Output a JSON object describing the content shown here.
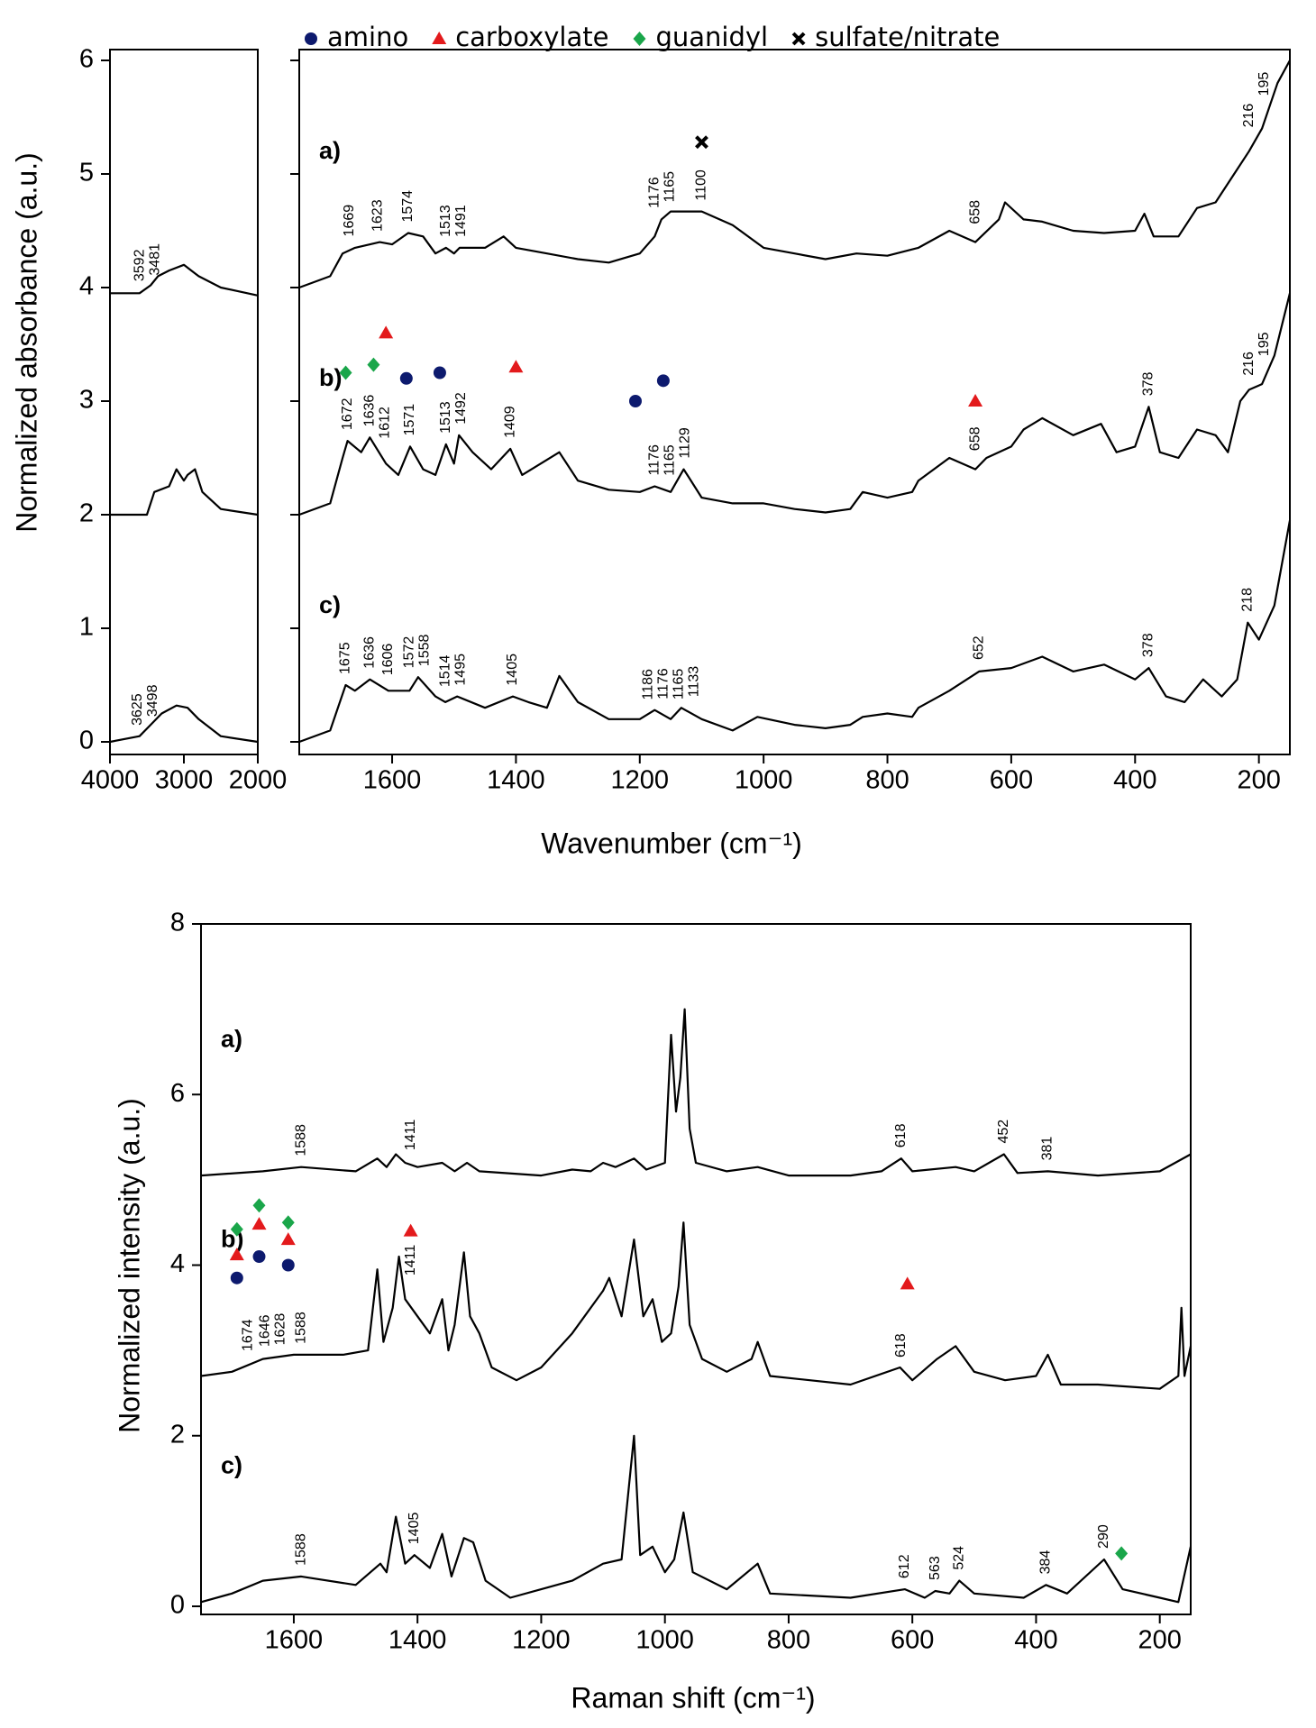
{
  "chart_data": [
    {
      "type": "line",
      "y_label": "Normalized absorbance (a.u.)",
      "xlim": [
        4000,
        2000
      ],
      "xticks": [
        4000,
        3000,
        2000
      ],
      "ylim": [
        0,
        6
      ],
      "yticks": [
        0,
        1,
        2,
        3,
        4,
        5,
        6
      ],
      "series": [
        {
          "color": "#000000",
          "x": [
            4000,
            3600,
            3450,
            3350,
            3200,
            3000,
            2900,
            2800,
            2500,
            2000
          ],
          "values": [
            3.95,
            3.95,
            4.02,
            4.1,
            4.15,
            4.2,
            4.15,
            4.1,
            4.0,
            3.93
          ],
          "peaks": [
            3592,
            3481
          ]
        },
        {
          "color": "#000000",
          "x": [
            4000,
            3500,
            3400,
            3200,
            3100,
            3000,
            2950,
            2850,
            2750,
            2500,
            2000
          ],
          "values": [
            2.0,
            2.0,
            2.2,
            2.25,
            2.4,
            2.3,
            2.35,
            2.4,
            2.2,
            2.05,
            2.0
          ]
        },
        {
          "color": "#000000",
          "x": [
            4000,
            3600,
            3450,
            3300,
            3100,
            2950,
            2800,
            2500,
            2000
          ],
          "values": [
            0.0,
            0.05,
            0.15,
            0.25,
            0.32,
            0.3,
            0.2,
            0.05,
            0.0
          ],
          "peaks": [
            3625,
            3498
          ]
        }
      ]
    },
    {
      "type": "line",
      "x_label": "Wavenumber (cm⁻¹)",
      "xlim": [
        1750,
        150
      ],
      "xticks": [
        1600,
        1400,
        1200,
        1000,
        800,
        600,
        400,
        200
      ],
      "ylim": [
        0,
        6
      ],
      "yticks": [
        0,
        1,
        2,
        3,
        4,
        5,
        6
      ],
      "series": [
        {
          "name": "a)",
          "color": "#000000",
          "x": [
            1750,
            1700,
            1680,
            1660,
            1620,
            1600,
            1574,
            1550,
            1530,
            1513,
            1500,
            1491,
            1450,
            1420,
            1400,
            1350,
            1300,
            1250,
            1200,
            1176,
            1165,
            1150,
            1100,
            1050,
            1000,
            950,
            900,
            850,
            800,
            750,
            700,
            658,
            620,
            610,
            580,
            550,
            500,
            450,
            400,
            385,
            370,
            330,
            300,
            270,
            240,
            216,
            195,
            170,
            150
          ],
          "values": [
            4.0,
            4.1,
            4.3,
            4.35,
            4.4,
            4.38,
            4.48,
            4.45,
            4.3,
            4.35,
            4.3,
            4.35,
            4.35,
            4.45,
            4.35,
            4.3,
            4.25,
            4.22,
            4.3,
            4.45,
            4.6,
            4.67,
            4.67,
            4.55,
            4.35,
            4.3,
            4.25,
            4.3,
            4.28,
            4.35,
            4.5,
            4.4,
            4.6,
            4.75,
            4.6,
            4.58,
            4.5,
            4.48,
            4.5,
            4.65,
            4.45,
            4.45,
            4.7,
            4.75,
            5.0,
            5.2,
            5.4,
            5.8,
            6.0
          ],
          "peaks": [
            1669,
            1623,
            1574,
            1513,
            1491,
            1176,
            1165,
            1100,
            658,
            216,
            195
          ]
        },
        {
          "name": "b)",
          "color": "#000000",
          "x": [
            1750,
            1700,
            1680,
            1672,
            1650,
            1636,
            1610,
            1590,
            1571,
            1550,
            1530,
            1513,
            1500,
            1492,
            1470,
            1440,
            1409,
            1390,
            1360,
            1330,
            1300,
            1250,
            1200,
            1176,
            1150,
            1129,
            1100,
            1050,
            1000,
            950,
            900,
            860,
            840,
            800,
            760,
            750,
            700,
            658,
            640,
            600,
            580,
            550,
            500,
            455,
            430,
            400,
            378,
            360,
            330,
            300,
            270,
            250,
            230,
            216,
            195,
            175,
            150
          ],
          "values": [
            2.0,
            2.1,
            2.5,
            2.65,
            2.55,
            2.68,
            2.45,
            2.35,
            2.6,
            2.4,
            2.35,
            2.62,
            2.45,
            2.7,
            2.55,
            2.4,
            2.58,
            2.35,
            2.45,
            2.55,
            2.3,
            2.22,
            2.2,
            2.25,
            2.2,
            2.4,
            2.15,
            2.1,
            2.1,
            2.05,
            2.02,
            2.05,
            2.2,
            2.15,
            2.2,
            2.3,
            2.5,
            2.4,
            2.5,
            2.6,
            2.75,
            2.85,
            2.7,
            2.8,
            2.55,
            2.6,
            2.95,
            2.55,
            2.5,
            2.75,
            2.7,
            2.55,
            3.0,
            3.1,
            3.15,
            3.4,
            3.95
          ],
          "peaks": [
            1672,
            1636,
            1612,
            1571,
            1513,
            1492,
            1409,
            1176,
            1165,
            1129,
            658,
            378,
            216,
            195
          ]
        },
        {
          "name": "c)",
          "color": "#000000",
          "x": [
            1750,
            1700,
            1675,
            1660,
            1636,
            1606,
            1572,
            1558,
            1530,
            1514,
            1495,
            1450,
            1405,
            1380,
            1350,
            1330,
            1300,
            1250,
            1200,
            1176,
            1150,
            1133,
            1100,
            1050,
            1010,
            950,
            900,
            860,
            840,
            800,
            760,
            750,
            700,
            652,
            600,
            550,
            500,
            450,
            400,
            378,
            350,
            320,
            290,
            260,
            235,
            218,
            200,
            175,
            150
          ],
          "values": [
            0.0,
            0.1,
            0.5,
            0.45,
            0.55,
            0.45,
            0.45,
            0.57,
            0.4,
            0.35,
            0.4,
            0.3,
            0.4,
            0.35,
            0.3,
            0.58,
            0.35,
            0.2,
            0.2,
            0.28,
            0.2,
            0.3,
            0.2,
            0.1,
            0.22,
            0.15,
            0.12,
            0.15,
            0.22,
            0.25,
            0.22,
            0.3,
            0.45,
            0.62,
            0.65,
            0.75,
            0.62,
            0.68,
            0.55,
            0.65,
            0.4,
            0.35,
            0.55,
            0.4,
            0.55,
            1.05,
            0.9,
            1.2,
            1.95
          ],
          "peaks": [
            1675,
            1636,
            1606,
            1572,
            1558,
            1514,
            1495,
            1405,
            1186,
            1176,
            1165,
            1133,
            652,
            378,
            218
          ]
        }
      ],
      "markers": [
        {
          "name": "amino",
          "color": "#0d1a6e",
          "symbol": "circle",
          "x": [
            1577,
            1523,
            1207,
            1162
          ],
          "y": [
            3.2,
            3.25,
            3.0,
            3.18
          ]
        },
        {
          "name": "carboxylate",
          "color": "#e31a1c",
          "symbol": "triangle",
          "x": [
            1610,
            1400,
            658
          ],
          "y": [
            3.6,
            3.3,
            3.0
          ]
        },
        {
          "name": "guanidyl",
          "color": "#1aa64a",
          "symbol": "diamond",
          "x": [
            1675,
            1630
          ],
          "y": [
            3.25,
            3.32
          ]
        },
        {
          "name": "sulfate/nitrate",
          "color": "#000000",
          "symbol": "cross",
          "x": [
            1100
          ],
          "y": [
            5.28
          ]
        }
      ]
    },
    {
      "type": "line",
      "x_label": "Raman shift (cm⁻¹)",
      "y_label": "Normalized intensity (a.u.)",
      "xlim": [
        1750,
        150
      ],
      "xticks": [
        1600,
        1400,
        1200,
        1000,
        800,
        600,
        400,
        200
      ],
      "ylim": [
        0,
        8
      ],
      "yticks": [
        0,
        2,
        4,
        6,
        8
      ],
      "series": [
        {
          "name": "a)",
          "color": "#000000",
          "x": [
            1750,
            1650,
            1588,
            1500,
            1465,
            1450,
            1435,
            1420,
            1400,
            1360,
            1340,
            1320,
            1300,
            1200,
            1150,
            1120,
            1100,
            1080,
            1050,
            1030,
            1000,
            990,
            982,
            975,
            968,
            960,
            950,
            900,
            850,
            800,
            700,
            650,
            618,
            600,
            530,
            500,
            452,
            430,
            381,
            300,
            200,
            150
          ],
          "values": [
            5.05,
            5.1,
            5.15,
            5.1,
            5.25,
            5.15,
            5.3,
            5.2,
            5.15,
            5.2,
            5.1,
            5.2,
            5.1,
            5.05,
            5.12,
            5.1,
            5.2,
            5.15,
            5.25,
            5.12,
            5.2,
            6.7,
            5.8,
            6.2,
            7.0,
            5.6,
            5.2,
            5.1,
            5.15,
            5.05,
            5.05,
            5.1,
            5.25,
            5.1,
            5.15,
            5.1,
            5.3,
            5.08,
            5.1,
            5.05,
            5.1,
            5.3
          ],
          "peaks": [
            1588,
            1411,
            618,
            452,
            381
          ]
        },
        {
          "name": "b)",
          "color": "#000000",
          "x": [
            1750,
            1700,
            1650,
            1600,
            1520,
            1480,
            1465,
            1455,
            1440,
            1430,
            1420,
            1400,
            1380,
            1360,
            1350,
            1340,
            1325,
            1315,
            1300,
            1280,
            1240,
            1200,
            1150,
            1100,
            1090,
            1070,
            1050,
            1035,
            1020,
            1005,
            990,
            978,
            970,
            960,
            940,
            900,
            860,
            850,
            830,
            700,
            620,
            600,
            560,
            530,
            500,
            450,
            400,
            381,
            360,
            300,
            200,
            170,
            165,
            160,
            150
          ],
          "values": [
            2.7,
            2.75,
            2.9,
            2.95,
            2.95,
            3.0,
            3.95,
            3.1,
            3.5,
            4.1,
            3.6,
            3.4,
            3.2,
            3.6,
            3.0,
            3.3,
            4.15,
            3.4,
            3.2,
            2.8,
            2.65,
            2.8,
            3.2,
            3.7,
            3.85,
            3.4,
            4.3,
            3.4,
            3.6,
            3.1,
            3.2,
            3.75,
            4.5,
            3.3,
            2.9,
            2.75,
            2.9,
            3.1,
            2.7,
            2.6,
            2.8,
            2.65,
            2.9,
            3.05,
            2.75,
            2.65,
            2.7,
            2.95,
            2.6,
            2.6,
            2.55,
            2.7,
            3.5,
            2.7,
            3.05
          ],
          "peaks": [
            1674,
            1646,
            1628,
            1588,
            1411,
            618
          ]
        },
        {
          "name": "c)",
          "color": "#000000",
          "x": [
            1750,
            1700,
            1650,
            1588,
            1500,
            1460,
            1450,
            1435,
            1420,
            1405,
            1380,
            1360,
            1345,
            1325,
            1310,
            1290,
            1250,
            1200,
            1150,
            1100,
            1070,
            1050,
            1040,
            1020,
            1000,
            985,
            970,
            955,
            900,
            850,
            830,
            700,
            612,
            580,
            563,
            540,
            524,
            500,
            420,
            384,
            350,
            290,
            260,
            200,
            170,
            150
          ],
          "values": [
            0.05,
            0.15,
            0.3,
            0.35,
            0.25,
            0.5,
            0.4,
            1.05,
            0.5,
            0.6,
            0.45,
            0.85,
            0.35,
            0.8,
            0.75,
            0.3,
            0.1,
            0.2,
            0.3,
            0.5,
            0.55,
            2.0,
            0.6,
            0.7,
            0.4,
            0.55,
            1.1,
            0.4,
            0.2,
            0.5,
            0.15,
            0.1,
            0.2,
            0.1,
            0.18,
            0.15,
            0.3,
            0.15,
            0.1,
            0.25,
            0.15,
            0.55,
            0.2,
            0.1,
            0.05,
            0.7
          ],
          "peaks": [
            1588,
            1405,
            612,
            563,
            524,
            384,
            290
          ]
        }
      ],
      "markers": [
        {
          "color": "#0d1a6e",
          "symbol": "circle",
          "x": [
            1692,
            1656,
            1609
          ],
          "y": [
            3.85,
            4.1,
            4.0
          ]
        },
        {
          "color": "#e31a1c",
          "symbol": "triangle",
          "x": [
            1692,
            1656,
            1609,
            1411,
            608
          ],
          "y": [
            4.12,
            4.48,
            4.3,
            4.4,
            3.78
          ]
        },
        {
          "color": "#1aa64a",
          "symbol": "diamond",
          "x": [
            1692,
            1656,
            1609,
            262
          ],
          "y": [
            4.42,
            4.7,
            4.5,
            0.62
          ]
        }
      ]
    }
  ]
}
